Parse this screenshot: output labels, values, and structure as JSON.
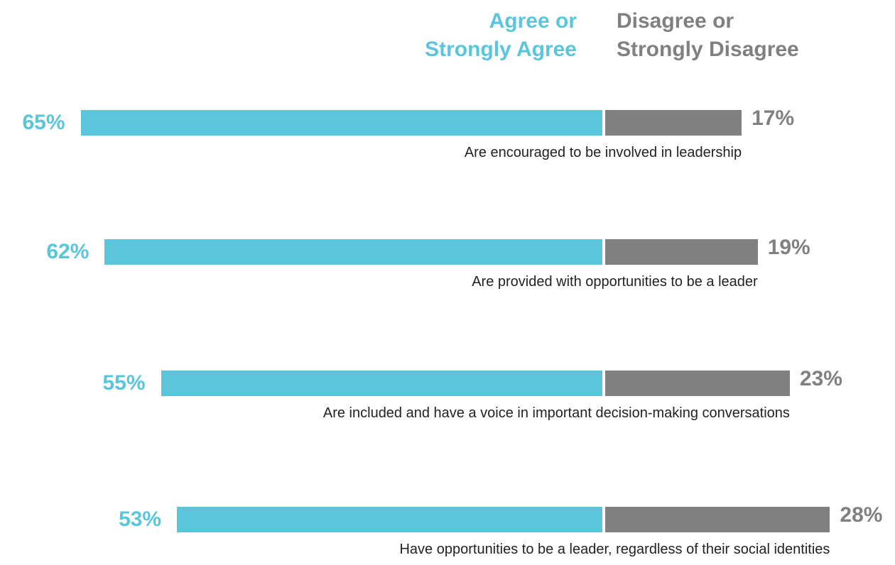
{
  "chart_data": {
    "type": "diverging-bar",
    "categories": [
      "Are encouraged to be involved in leadership",
      "Are provided with opportunities to be a leader",
      "Are included and have a voice in important decision-making conversations",
      "Have opportunities to be a leader, regardless of their social identities"
    ],
    "series": [
      {
        "name": "Agree or\nStrongly Agree",
        "color": "#5bc5db",
        "values": [
          65,
          62,
          55,
          53
        ],
        "value_labels": [
          "65%",
          "62%",
          "55%",
          "53%"
        ]
      },
      {
        "name": "Disagree or\nStrongly Disagree",
        "color": "#808080",
        "values": [
          17,
          19,
          23,
          28
        ],
        "value_labels": [
          "17%",
          "19%",
          "23%",
          "28%"
        ]
      }
    ]
  }
}
